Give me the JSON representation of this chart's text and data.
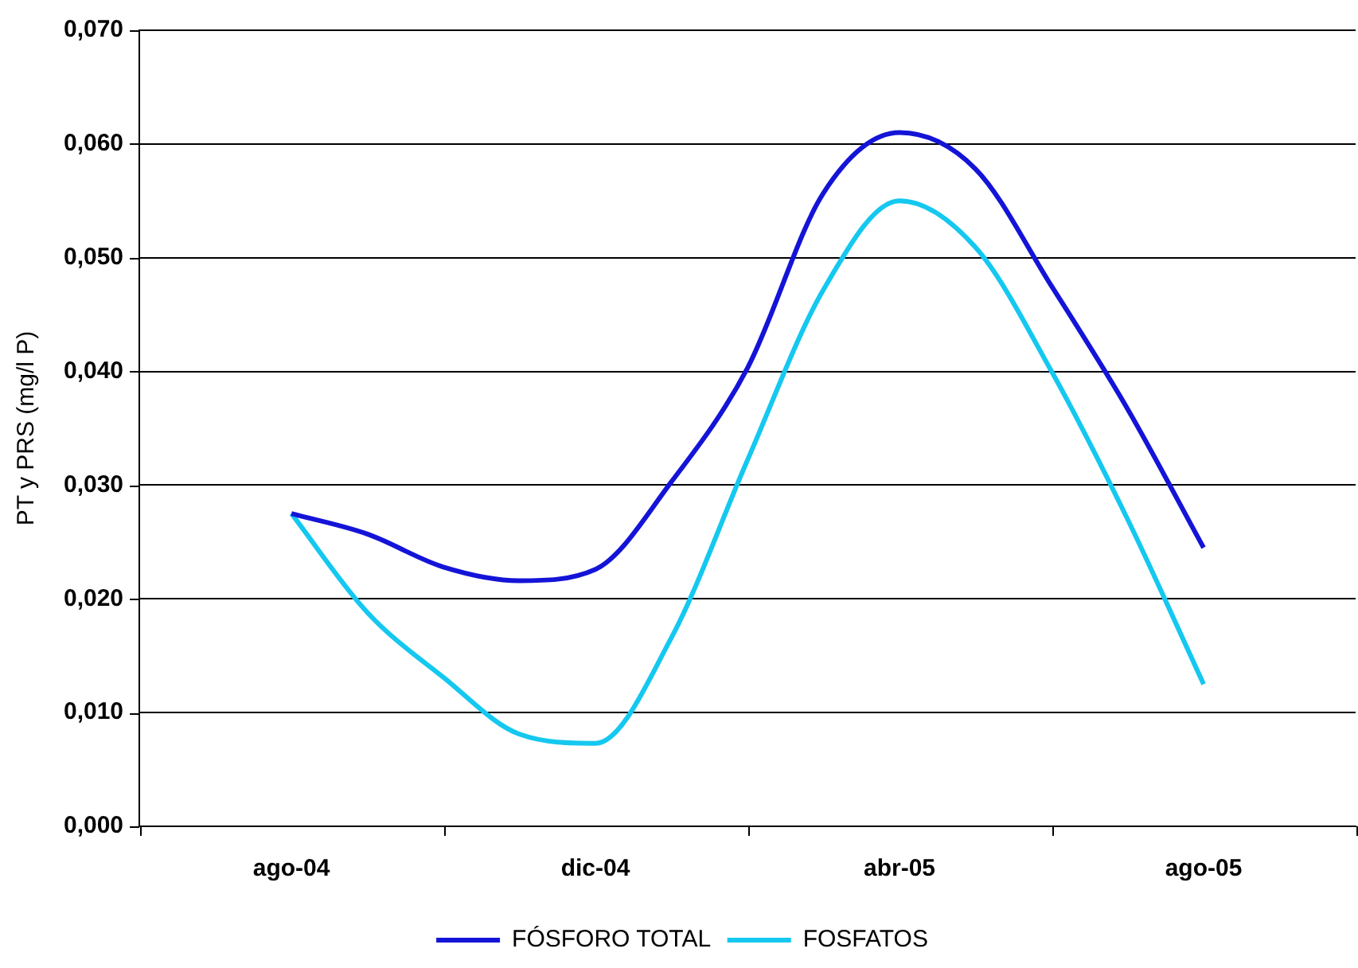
{
  "chart_data": {
    "type": "line",
    "ylabel": "PT y PRS (mg/l P)",
    "categories": [
      "ago-04",
      null,
      null,
      null,
      "dic-04",
      null,
      null,
      null,
      "abr-05",
      null,
      null,
      null,
      "ago-05"
    ],
    "series": [
      {
        "name": "FÓSFORO TOTAL",
        "color": "#1414d8",
        "values": [
          0.0275,
          0.0257,
          0.0228,
          0.0216,
          0.0226,
          0.0303,
          0.0403,
          0.0557,
          0.061,
          0.0578,
          0.0475,
          0.0367,
          0.0245
        ]
      },
      {
        "name": "FOSFATOS",
        "color": "#14c8f0",
        "values": [
          0.0275,
          0.0188,
          0.0131,
          0.0081,
          0.0073,
          0.0166,
          0.0322,
          0.0472,
          0.055,
          0.0509,
          0.04,
          0.027,
          0.0125
        ]
      }
    ],
    "ylim": [
      0,
      0.07
    ],
    "yticks": [
      {
        "value": 0,
        "label": "0,000"
      },
      {
        "value": 0.01,
        "label": "0,010"
      },
      {
        "value": 0.02,
        "label": "0,020"
      },
      {
        "value": 0.03,
        "label": "0,030"
      },
      {
        "value": 0.04,
        "label": "0,040"
      },
      {
        "value": 0.05,
        "label": "0,050"
      },
      {
        "value": 0.06,
        "label": "0,060"
      },
      {
        "value": 0.07,
        "label": "0,070"
      }
    ],
    "grid": "y",
    "legend": "bottom",
    "marker": "none",
    "line_style": "solid"
  }
}
